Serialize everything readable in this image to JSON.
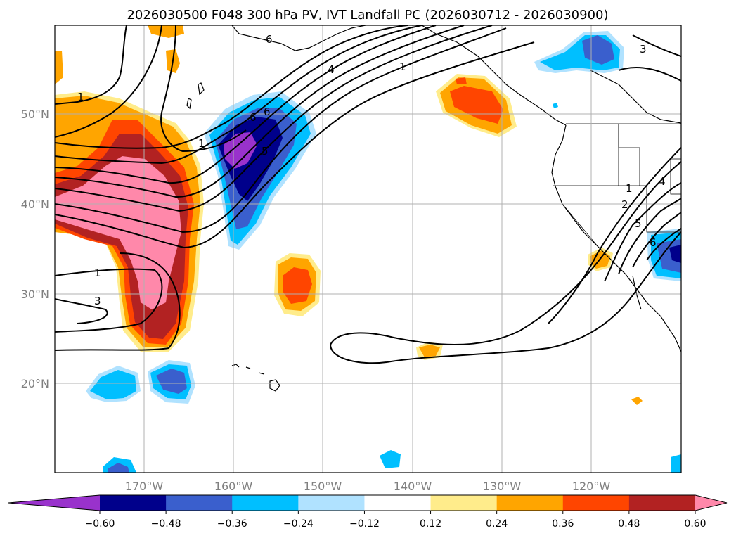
{
  "title": "2026030500 F048 300 hPa PV, IVT Landfall PC (2026030712 - 2026030900)",
  "lat_labels": [
    "50°N",
    "40°N",
    "30°N",
    "20°N"
  ],
  "lon_labels": [
    "170°W",
    "160°W",
    "150°W",
    "140°W",
    "130°W",
    "120°W"
  ],
  "colorbar": {
    "ticks": [
      "−0.60",
      "−0.48",
      "−0.36",
      "−0.24",
      "−0.12",
      "0.12",
      "0.24",
      "0.36",
      "0.48",
      "0.60"
    ],
    "colors": [
      "#9932cc",
      "#00008b",
      "#3a5fcd",
      "#00bfff",
      "#b0e2ff",
      "#ffffff",
      "#ffec8b",
      "#ffa500",
      "#ff4500",
      "#b22222",
      "#ff88aa"
    ]
  },
  "contour_labels": [
    "6",
    "4",
    "1",
    "1",
    "6",
    "1",
    "6",
    "5",
    "3",
    "1",
    "3",
    "1",
    "2",
    "4",
    "5",
    "6"
  ]
}
